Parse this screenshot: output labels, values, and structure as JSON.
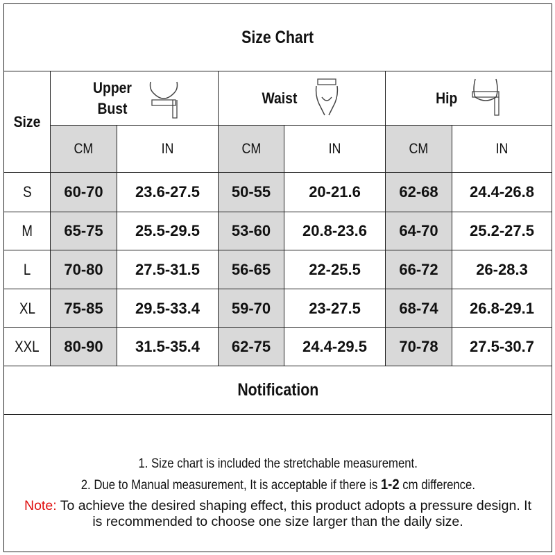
{
  "title": "Size Chart",
  "table": {
    "size_label": "Size",
    "groups": [
      {
        "name": "Upper Bust",
        "units": [
          "CM",
          "IN"
        ]
      },
      {
        "name": "Waist",
        "units": [
          "CM",
          "IN"
        ]
      },
      {
        "name": "Hip",
        "units": [
          "CM",
          "IN"
        ]
      }
    ],
    "rows": [
      [
        "S",
        "60-70",
        "23.6-27.5",
        "50-55",
        "20-21.6",
        "62-68",
        "24.4-26.8"
      ],
      [
        "M",
        "65-75",
        "25.5-29.5",
        "53-60",
        "20.8-23.6",
        "64-70",
        "25.2-27.5"
      ],
      [
        "L",
        "70-80",
        "27.5-31.5",
        "56-65",
        "22-25.5",
        "66-72",
        "26-28.3"
      ],
      [
        "XL",
        "75-85",
        "29.5-33.4",
        "59-70",
        "23-27.5",
        "68-74",
        "26.8-29.1"
      ],
      [
        "XXL",
        "80-90",
        "31.5-35.4",
        "62-75",
        "24.4-29.5",
        "70-78",
        "27.5-30.7"
      ]
    ]
  },
  "notification": {
    "title": "Notification",
    "line1": "1. Size chart is included the stretchable measurement.",
    "line2": {
      "before": "2. Due to Manual measurement, It is acceptable if there is",
      "bold": "1-2",
      "after": "cm difference."
    },
    "note": {
      "label": "Note:",
      "text": "To achieve the desired shaping effect, this product adopts a pressure design. It is recommended to choose one size larger than the daily size."
    }
  }
}
